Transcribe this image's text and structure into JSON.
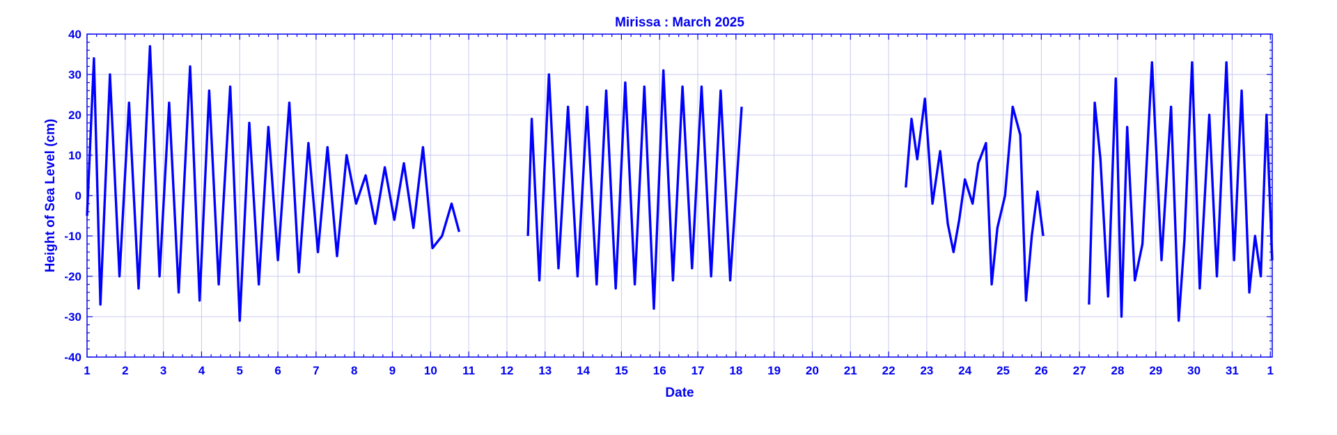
{
  "chart_data": {
    "type": "line",
    "title": "Mirissa : March 2025",
    "xlabel": "Date",
    "ylabel": "Height of Sea Level (cm)",
    "ylim": [
      -40,
      40
    ],
    "xlim": [
      1,
      32.05
    ],
    "yticks": [
      -40,
      -30,
      -20,
      -10,
      0,
      10,
      20,
      30,
      40
    ],
    "xtick_labels": [
      "1",
      "2",
      "3",
      "4",
      "5",
      "6",
      "7",
      "8",
      "9",
      "10",
      "11",
      "12",
      "13",
      "14",
      "15",
      "16",
      "17",
      "18",
      "19",
      "20",
      "21",
      "22",
      "23",
      "24",
      "25",
      "26",
      "27",
      "28",
      "29",
      "30",
      "31",
      "1"
    ],
    "grid": true,
    "color": "#0000ff",
    "series": [
      {
        "segments": [
          {
            "x": [
              1.0,
              1.18,
              1.35,
              1.6,
              1.85,
              2.1,
              2.35,
              2.65,
              2.9,
              3.15,
              3.4,
              3.7,
              3.95,
              4.2,
              4.45,
              4.75,
              5.0,
              5.25,
              5.5,
              5.75,
              6.0,
              6.3,
              6.55,
              6.8,
              7.05,
              7.3,
              7.55,
              7.8,
              8.05,
              8.3,
              8.55,
              8.8,
              9.05,
              9.3,
              9.55,
              9.8,
              10.05,
              10.3,
              10.55,
              10.75
            ],
            "y": [
              -5,
              34,
              -27,
              30,
              -20,
              23,
              -23,
              37,
              -20,
              23,
              -24,
              32,
              -26,
              26,
              -22,
              27,
              -31,
              18,
              -22,
              17,
              -16,
              23,
              -19,
              13,
              -14,
              12,
              -15,
              10,
              -2,
              5,
              -7,
              7,
              -6,
              8,
              -8,
              12,
              -13,
              -10,
              -2,
              -9
            ]
          },
          {
            "x": [
              12.55,
              12.65,
              12.85,
              13.1,
              13.35,
              13.6,
              13.85,
              14.1,
              14.35,
              14.6,
              14.85,
              15.1,
              15.35,
              15.6,
              15.85,
              16.1,
              16.35,
              16.6,
              16.85,
              17.1,
              17.35,
              17.6,
              17.85,
              18.15
            ],
            "y": [
              -10,
              19,
              -21,
              30,
              -18,
              22,
              -20,
              22,
              -22,
              26,
              -23,
              28,
              -22,
              27,
              -28,
              31,
              -21,
              27,
              -18,
              27,
              -20,
              26,
              -21,
              22
            ]
          },
          {
            "x": [
              22.45,
              22.6,
              22.75,
              22.95,
              23.15,
              23.35,
              23.55,
              23.7,
              23.85,
              24.0,
              24.2,
              24.35,
              24.55,
              24.7,
              24.85,
              25.05,
              25.25,
              25.45,
              25.6,
              25.75,
              25.9,
              26.05
            ],
            "y": [
              2,
              19,
              9,
              24,
              -2,
              11,
              -7,
              -14,
              -6,
              4,
              -2,
              8,
              13,
              -22,
              -8,
              0,
              22,
              15,
              -26,
              -10,
              1,
              -10
            ]
          },
          {
            "x": [
              27.25,
              27.4,
              27.55,
              27.75,
              27.95,
              28.1,
              28.25,
              28.45,
              28.65,
              28.9,
              29.15,
              29.4,
              29.6,
              29.75,
              29.95,
              30.15,
              30.4,
              30.6,
              30.85,
              31.05,
              31.25,
              31.45,
              31.6,
              31.75,
              31.9,
              32.05
            ],
            "y": [
              -27,
              23,
              9,
              -25,
              29,
              -30,
              17,
              -21,
              -12,
              33,
              -16,
              22,
              -31,
              -11,
              33,
              -23,
              20,
              -20,
              33,
              -16,
              26,
              -24,
              -10,
              -20,
              20,
              -16
            ]
          }
        ]
      }
    ]
  }
}
